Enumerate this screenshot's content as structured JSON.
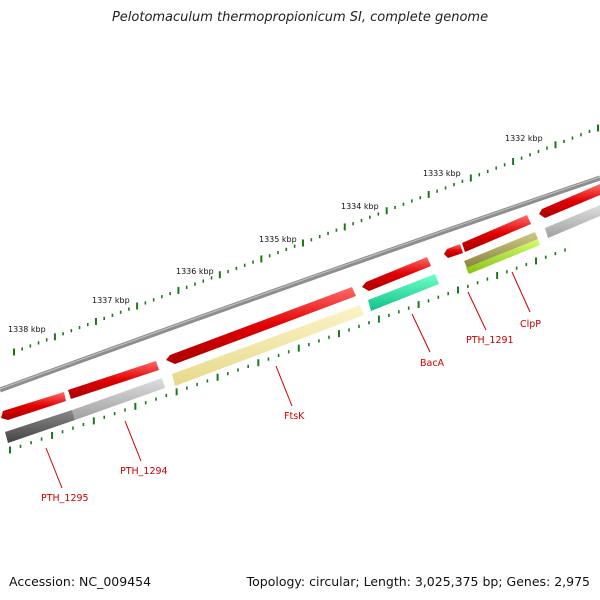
{
  "title": "Pelotomaculum thermopropionicum SI, complete genome",
  "footer": {
    "accession": "Accession: NC_009454",
    "topology": "Topology: circular; Length: 3,025,375 bp; Genes: 2,975"
  },
  "scale_labels": [
    "1332 kbp",
    "1333 kbp",
    "1334 kbp",
    "1335 kbp",
    "1336 kbp",
    "1337 kbp",
    "1338 kbp"
  ],
  "gene_labels": [
    "ClpP",
    "PTH_1291",
    "BacA",
    "FtsK",
    "PTH_1294",
    "PTH_1295"
  ],
  "colors": {
    "forward_strand": "#e00000",
    "backbone": "#888888",
    "scale_ticks": "#1a7a1a",
    "label_text": "#cc0000",
    "cog_gray_dark": "#555555",
    "cog_gray_light": "#b8b8b8",
    "cog_yellow": "#f0e6a0",
    "cog_teal": "#20e0a0",
    "cog_olive": "#b0a860",
    "cog_lime": "#aae020"
  }
}
